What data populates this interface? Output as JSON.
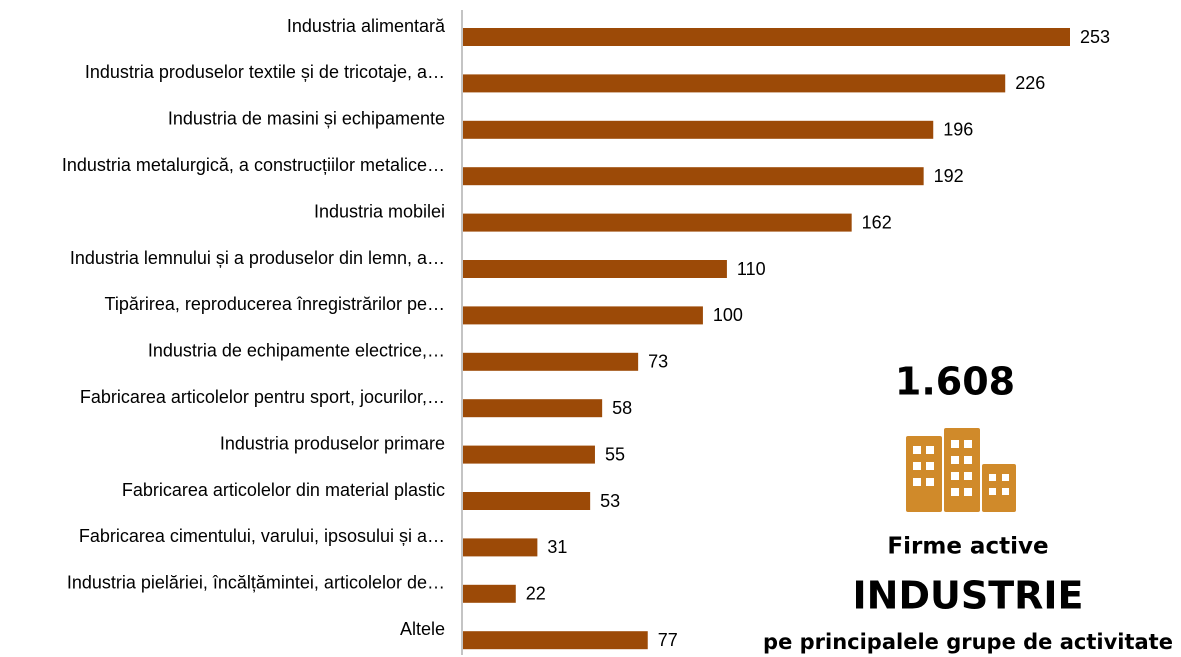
{
  "chart_data": {
    "type": "barh",
    "categories": [
      "Industria alimentară",
      "Industria produselor textile și de tricotaje, a…",
      "Industria de masini și echipamente",
      "Industria metalurgică, a construcțiilor metalice…",
      "Industria mobilei",
      "Industria lemnului și a produselor din lemn, a…",
      "Tipărirea, reproducerea înregistrărilor pe…",
      "Industria de echipamente electrice,…",
      "Fabricarea articolelor pentru sport, jocurilor,…",
      "Industria produselor primare",
      "Fabricarea articolelor din material plastic",
      "Fabricarea cimentului, varului, ipsosului și a…",
      "Industria pielăriei, încălțămintei, articolelor de…",
      "Altele"
    ],
    "values": [
      253,
      226,
      196,
      192,
      162,
      110,
      100,
      73,
      58,
      55,
      53,
      31,
      22,
      77
    ],
    "color": "#9c4a07",
    "annotations": [
      "1.608",
      "Firme active",
      "INDUSTRIE",
      "pe principalele grupe de activitate"
    ]
  }
}
